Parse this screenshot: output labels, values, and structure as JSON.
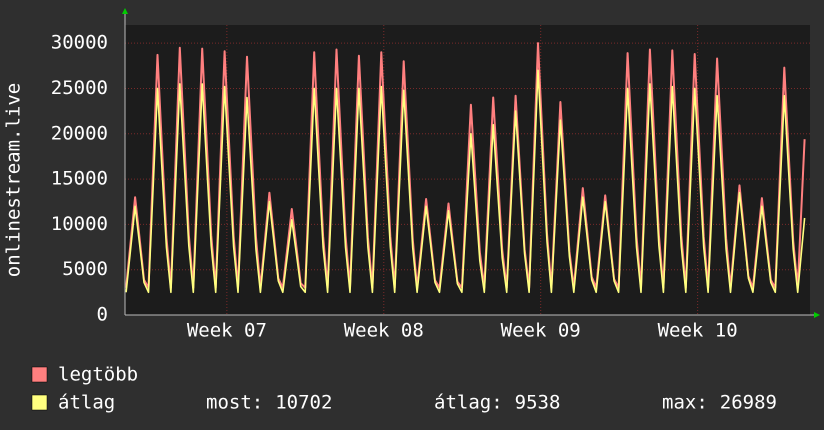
{
  "chart_data": {
    "type": "line",
    "ylabel": "onlinestream.live",
    "x": [
      0.05,
      0.45,
      0.65,
      0.85,
      1.05,
      1.45,
      1.65,
      1.85,
      2.05,
      2.45,
      2.65,
      2.85,
      3.05,
      3.45,
      3.65,
      3.85,
      4.05,
      4.45,
      4.65,
      4.85,
      5.05,
      5.45,
      5.65,
      5.85,
      6.05,
      6.45,
      6.65,
      6.85,
      7.05,
      7.45,
      7.65,
      7.85,
      8.05,
      8.45,
      8.65,
      8.85,
      9.05,
      9.45,
      9.65,
      9.85,
      10.05,
      10.45,
      10.65,
      10.85,
      11.05,
      11.45,
      11.65,
      11.85,
      12.05,
      12.45,
      12.65,
      12.85,
      13.05,
      13.45,
      13.65,
      13.85,
      14.05,
      14.45,
      14.65,
      14.85,
      15.05,
      15.45,
      15.65,
      15.85,
      16.05,
      16.45,
      16.65,
      16.85,
      17.05,
      17.45,
      17.65,
      17.85,
      18.05,
      18.45,
      18.65,
      18.85,
      19.05,
      19.45,
      19.65,
      19.85,
      20.05,
      20.45,
      20.65,
      20.85,
      21.05,
      21.45,
      21.65,
      21.85,
      22.05,
      22.45,
      22.65,
      22.85,
      23.05,
      23.45,
      23.65,
      23.85,
      24.05,
      24.45,
      24.65,
      24.85,
      25.05,
      25.45,
      25.65,
      25.85,
      26.05,
      26.45,
      26.65,
      26.85,
      27.05,
      27.45,
      27.65,
      27.85,
      28.05,
      28.45,
      28.65,
      28.85,
      29.05,
      29.45,
      29.65,
      29.85,
      30.05,
      30.36
    ],
    "series": [
      {
        "name": "legtöbb",
        "color": "#ff7f7f",
        "values": [
          3000,
          13000,
          8450,
          3900,
          3000,
          28700,
          18655,
          8610,
          3000,
          29500,
          19175,
          8850,
          3000,
          29400,
          19110,
          8820,
          3000,
          29100,
          18915,
          8730,
          3000,
          28500,
          18525,
          8550,
          3000,
          13500,
          8775,
          4050,
          3000,
          11700,
          7605,
          3510,
          3000,
          29000,
          18850,
          8700,
          3000,
          29300,
          19045,
          8790,
          3000,
          28600,
          18590,
          8580,
          3000,
          29000,
          18850,
          8700,
          3000,
          28000,
          18200,
          8400,
          3000,
          12800,
          8320,
          3840,
          3000,
          12300,
          7995,
          3690,
          3000,
          23200,
          15080,
          6960,
          3000,
          24000,
          15600,
          7200,
          3000,
          24200,
          15730,
          7260,
          3000,
          30000,
          19500,
          9000,
          3000,
          23500,
          15275,
          7050,
          3000,
          14000,
          9100,
          4200,
          3000,
          13200,
          8580,
          3960,
          3000,
          28900,
          18785,
          8670,
          3000,
          29300,
          19045,
          8790,
          3000,
          29200,
          18980,
          8760,
          3000,
          28800,
          18720,
          8640,
          3000,
          28300,
          18395,
          8490,
          3000,
          14300,
          9295,
          4290,
          3000,
          12900,
          8385,
          3870,
          3000,
          27300,
          17745,
          8190,
          3000,
          19400
        ]
      },
      {
        "name": "átlag",
        "color": "#ffff80",
        "values": [
          2500,
          12000,
          7800,
          3600,
          2500,
          25000,
          16250,
          7500,
          2500,
          25500,
          16575,
          7650,
          2500,
          25500,
          16575,
          7650,
          2500,
          25200,
          16380,
          7560,
          2500,
          24000,
          15600,
          7200,
          2500,
          12500,
          8125,
          3750,
          2500,
          10500,
          6825,
          3150,
          2500,
          25000,
          16250,
          7500,
          2500,
          25000,
          16250,
          7500,
          2500,
          25000,
          16250,
          7500,
          2500,
          25200,
          16380,
          7560,
          2500,
          24800,
          16120,
          7440,
          2500,
          12000,
          7800,
          3600,
          2500,
          11500,
          7475,
          3450,
          2500,
          20000,
          13000,
          6000,
          2500,
          21000,
          13650,
          6300,
          2500,
          22500,
          14625,
          6750,
          2500,
          27000,
          17550,
          8100,
          2500,
          21500,
          13975,
          6450,
          2500,
          13000,
          8450,
          3900,
          2500,
          12500,
          8125,
          3750,
          2500,
          25000,
          16250,
          7500,
          2500,
          25500,
          16575,
          7650,
          2500,
          25200,
          16380,
          7560,
          2500,
          25000,
          16250,
          7500,
          2500,
          24200,
          15730,
          7260,
          2500,
          13500,
          8775,
          4050,
          2500,
          12000,
          7800,
          3600,
          2500,
          24200,
          15730,
          7260,
          2500,
          10702
        ]
      }
    ],
    "stats": [
      {
        "label": "most:",
        "value": 10702
      },
      {
        "label": "átlag:",
        "value": 9538
      },
      {
        "label": "max:",
        "value": 26989
      }
    ],
    "xlim": [
      0,
      30.6
    ],
    "xticks": [
      {
        "value": 4.55,
        "label": "Week 07"
      },
      {
        "value": 11.56,
        "label": "Week 08"
      },
      {
        "value": 18.57,
        "label": "Week 09"
      },
      {
        "value": 25.58,
        "label": "Week 10"
      }
    ],
    "ylim": [
      0,
      32000
    ],
    "yticks": [
      0,
      5000,
      10000,
      15000,
      20000,
      25000,
      30000
    ],
    "grid": true
  }
}
